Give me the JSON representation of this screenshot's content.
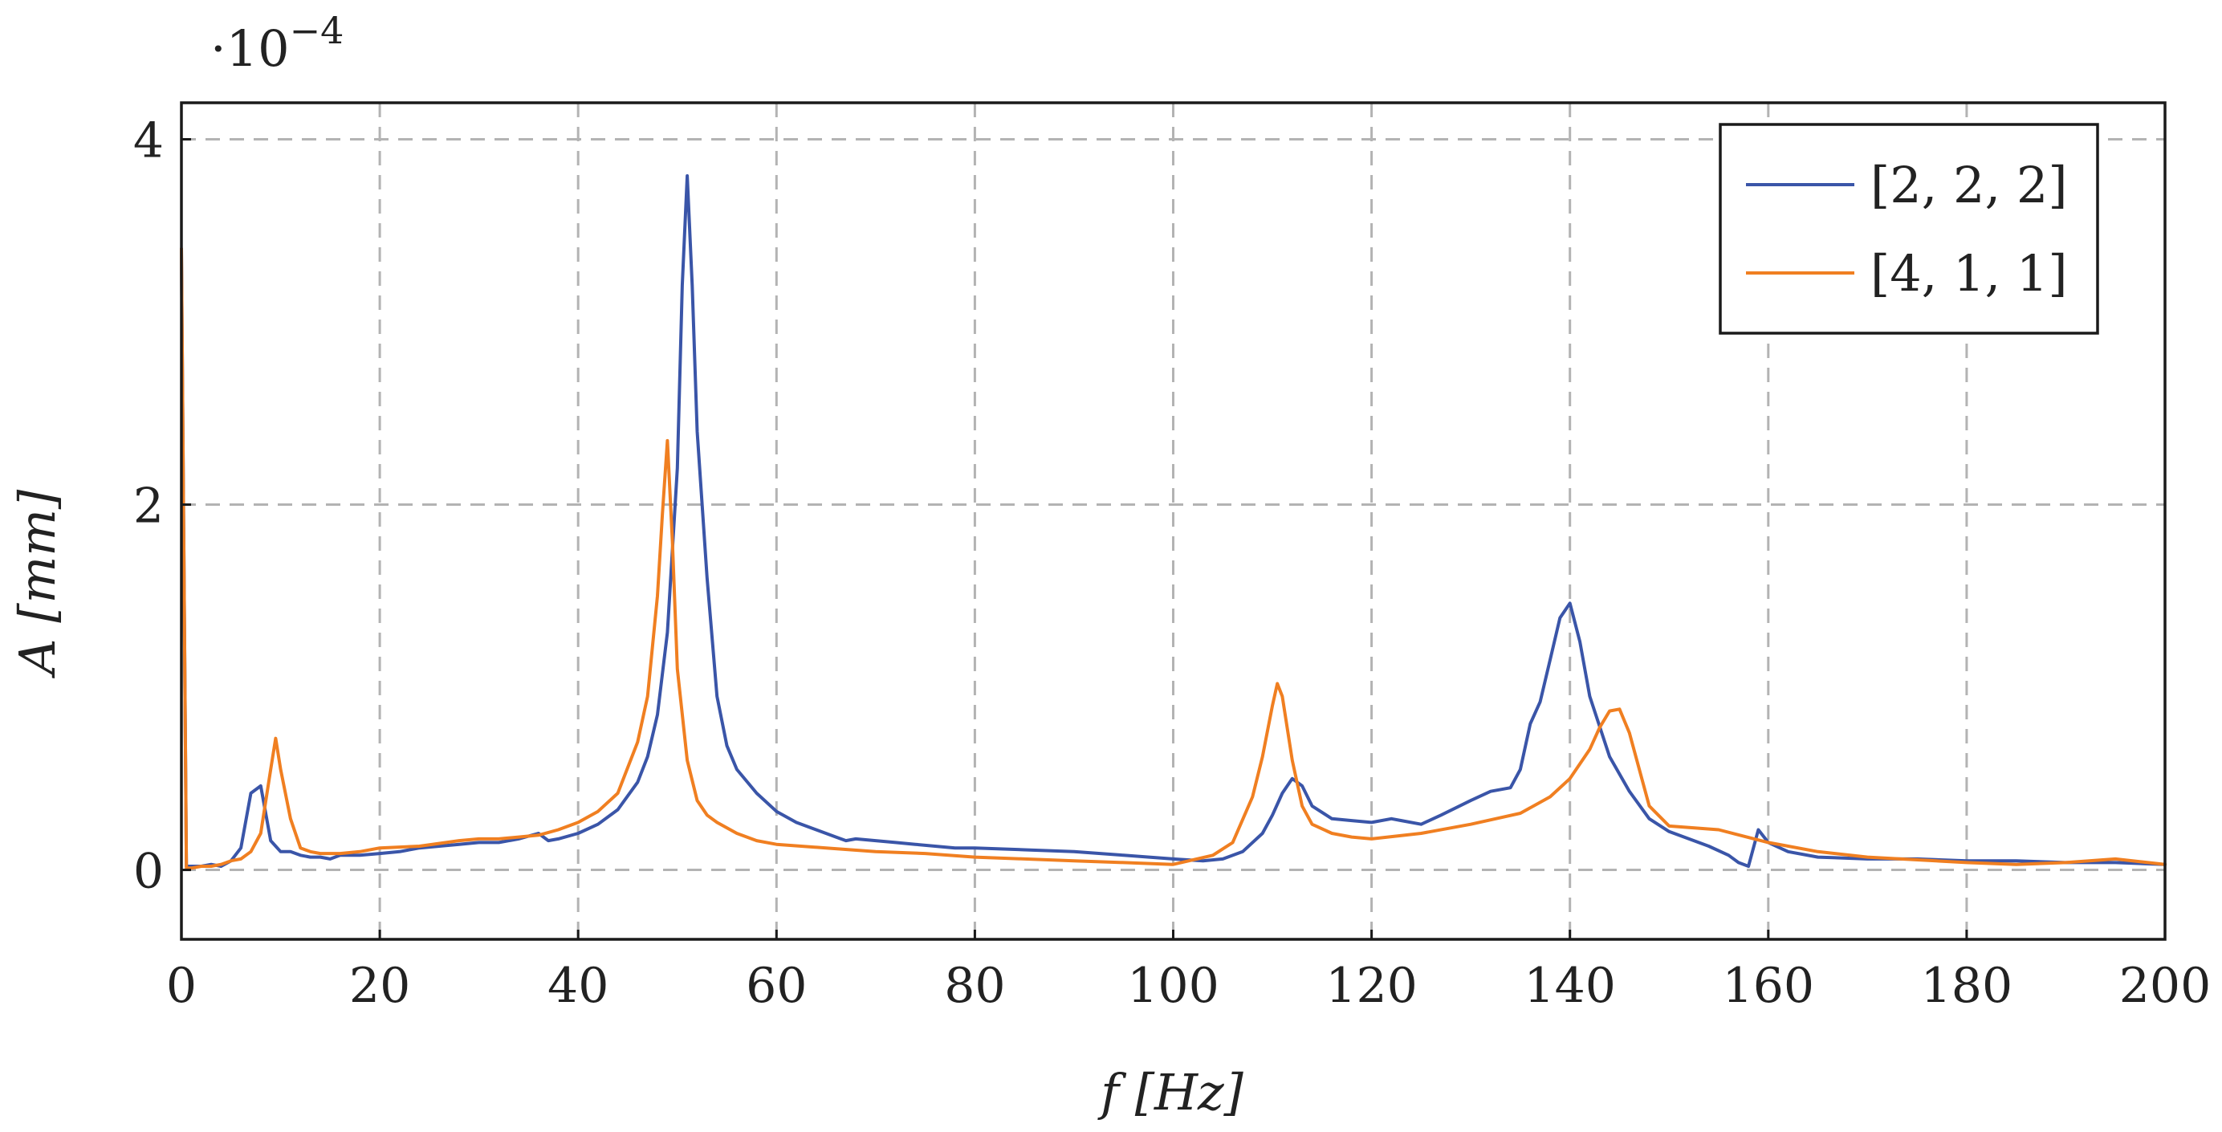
{
  "chart_data": {
    "type": "line",
    "title": "",
    "xlabel": "f [Hz]",
    "ylabel": "A [mm]",
    "y_multiplier": "·10",
    "y_multiplier_exponent": "−4",
    "xlim": [
      0,
      200
    ],
    "ylim": [
      -0.38,
      4.2
    ],
    "xticks": [
      0,
      20,
      40,
      60,
      80,
      100,
      120,
      140,
      160,
      180,
      200
    ],
    "yticks": [
      0,
      2,
      4
    ],
    "grid": true,
    "legend_position": "top-right",
    "series": [
      {
        "name": "[2, 2, 2]",
        "color": "#3a55a8",
        "x": [
          0,
          0.5,
          1,
          2,
          3,
          4,
          5,
          6,
          7,
          8,
          9,
          10,
          11,
          12,
          13,
          14,
          15,
          16,
          18,
          20,
          22,
          24,
          26,
          28,
          30,
          32,
          34,
          36,
          37,
          38,
          40,
          42,
          44,
          46,
          47,
          48,
          49,
          50,
          50.5,
          51,
          51.5,
          52,
          53,
          54,
          55,
          56,
          58,
          60,
          62,
          64,
          66,
          67,
          68,
          70,
          72,
          74,
          76,
          78,
          80,
          85,
          90,
          95,
          100,
          103,
          105,
          107,
          109,
          110,
          111,
          112,
          113,
          114,
          116,
          118,
          120,
          122,
          123,
          125,
          127,
          130,
          132,
          134,
          135,
          136,
          137,
          138,
          139,
          140,
          141,
          142,
          144,
          146,
          148,
          150,
          152,
          154,
          156,
          157,
          158,
          159,
          160,
          162,
          165,
          170,
          175,
          180,
          185,
          190,
          195,
          200
        ],
        "y": [
          3.4,
          0.02,
          0.02,
          0.02,
          0.03,
          0.02,
          0.05,
          0.12,
          0.42,
          0.46,
          0.16,
          0.1,
          0.1,
          0.08,
          0.07,
          0.07,
          0.06,
          0.08,
          0.08,
          0.09,
          0.1,
          0.12,
          0.13,
          0.14,
          0.15,
          0.15,
          0.17,
          0.2,
          0.16,
          0.17,
          0.2,
          0.25,
          0.33,
          0.48,
          0.62,
          0.85,
          1.3,
          2.2,
          3.2,
          3.8,
          3.2,
          2.4,
          1.6,
          0.95,
          0.68,
          0.55,
          0.42,
          0.32,
          0.26,
          0.22,
          0.18,
          0.16,
          0.17,
          0.16,
          0.15,
          0.14,
          0.13,
          0.12,
          0.12,
          0.11,
          0.1,
          0.08,
          0.06,
          0.05,
          0.06,
          0.1,
          0.2,
          0.3,
          0.42,
          0.5,
          0.46,
          0.35,
          0.28,
          0.27,
          0.26,
          0.28,
          0.27,
          0.25,
          0.3,
          0.38,
          0.43,
          0.45,
          0.55,
          0.8,
          0.92,
          1.15,
          1.38,
          1.46,
          1.25,
          0.95,
          0.62,
          0.43,
          0.28,
          0.21,
          0.17,
          0.13,
          0.08,
          0.04,
          0.02,
          0.22,
          0.15,
          0.1,
          0.07,
          0.06,
          0.06,
          0.05,
          0.05,
          0.04,
          0.04,
          0.03
        ]
      },
      {
        "name": "[4, 1, 1]",
        "color": "#f07f21",
        "x": [
          0,
          0.5,
          1,
          2,
          3,
          4,
          5,
          6,
          7,
          8,
          9,
          9.5,
          10,
          11,
          12,
          13,
          14,
          15,
          16,
          18,
          20,
          24,
          28,
          30,
          32,
          34,
          36,
          38,
          40,
          42,
          44,
          46,
          47,
          48,
          48.5,
          49,
          49.5,
          50,
          51,
          52,
          53,
          54,
          56,
          58,
          60,
          65,
          70,
          75,
          80,
          85,
          90,
          95,
          100,
          104,
          106,
          108,
          109,
          110,
          110.5,
          111,
          112,
          113,
          114,
          116,
          118,
          120,
          125,
          130,
          135,
          138,
          140,
          142,
          143,
          144,
          145,
          146,
          148,
          150,
          155,
          160,
          165,
          170,
          180,
          185,
          190,
          195,
          200
        ],
        "y": [
          3.4,
          0.01,
          0.01,
          0.02,
          0.02,
          0.03,
          0.05,
          0.06,
          0.1,
          0.2,
          0.55,
          0.72,
          0.55,
          0.28,
          0.12,
          0.1,
          0.09,
          0.09,
          0.09,
          0.1,
          0.12,
          0.13,
          0.16,
          0.17,
          0.17,
          0.18,
          0.19,
          0.22,
          0.26,
          0.32,
          0.42,
          0.7,
          0.95,
          1.5,
          1.95,
          2.35,
          1.8,
          1.1,
          0.6,
          0.38,
          0.3,
          0.26,
          0.2,
          0.16,
          0.14,
          0.12,
          0.1,
          0.09,
          0.07,
          0.06,
          0.05,
          0.04,
          0.03,
          0.08,
          0.15,
          0.4,
          0.62,
          0.9,
          1.02,
          0.95,
          0.6,
          0.35,
          0.25,
          0.2,
          0.18,
          0.17,
          0.2,
          0.25,
          0.31,
          0.4,
          0.5,
          0.66,
          0.78,
          0.87,
          0.88,
          0.75,
          0.35,
          0.24,
          0.22,
          0.15,
          0.1,
          0.07,
          0.04,
          0.03,
          0.04,
          0.06,
          0.03
        ]
      }
    ]
  }
}
